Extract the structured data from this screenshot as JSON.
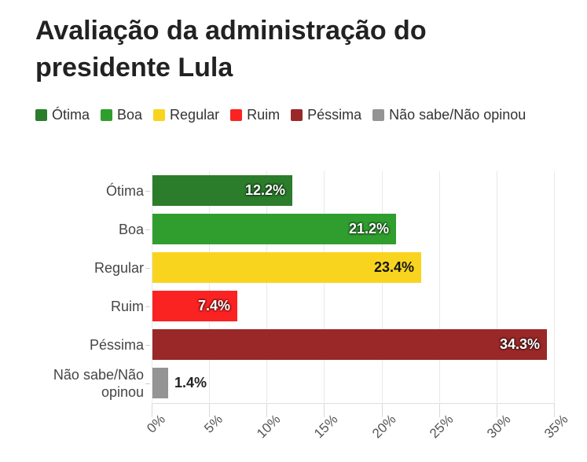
{
  "title": "Avaliação da administração do presidente Lula",
  "colors": {
    "background": "#ffffff",
    "grid": "#e8e8e8",
    "title_text": "#222222",
    "category_text": "#454545",
    "tick_text": "#555555"
  },
  "chart_data": {
    "type": "bar",
    "orientation": "horizontal",
    "title": "Avaliação da administração do presidente Lula",
    "xlabel": "",
    "ylabel": "",
    "xlim": [
      0,
      35
    ],
    "grid": "vertical",
    "legend_position": "top-left",
    "categories": [
      "Ótima",
      "Boa",
      "Regular",
      "Ruim",
      "Péssima",
      "Não sabe/Não opinou"
    ],
    "values": [
      12.2,
      21.2,
      23.4,
      7.4,
      34.3,
      1.4
    ],
    "series": [
      {
        "name": "Ótima",
        "value": 12.2,
        "label": "12.2%",
        "color": "#2b7d2b",
        "value_label_style": "inside-white"
      },
      {
        "name": "Boa",
        "value": 21.2,
        "label": "21.2%",
        "color": "#2f9e2f",
        "value_label_style": "inside-white"
      },
      {
        "name": "Regular",
        "value": 23.4,
        "label": "23.4%",
        "color": "#f8d41f",
        "value_label_style": "inside-black"
      },
      {
        "name": "Ruim",
        "value": 7.4,
        "label": "7.4%",
        "color": "#fb2222",
        "value_label_style": "inside-white"
      },
      {
        "name": "Péssima",
        "value": 34.3,
        "label": "34.3%",
        "color": "#9a2828",
        "value_label_style": "inside-white"
      },
      {
        "name": "Não sabe/Não opinou",
        "value": 1.4,
        "label": "1.4%",
        "color": "#949494",
        "value_label_style": "outside-dark"
      }
    ],
    "x_ticks": [
      {
        "value": 0,
        "label": "0%"
      },
      {
        "value": 5,
        "label": "5%"
      },
      {
        "value": 10,
        "label": "10%"
      },
      {
        "value": 15,
        "label": "15%"
      },
      {
        "value": 20,
        "label": "20%"
      },
      {
        "value": 25,
        "label": "25%"
      },
      {
        "value": 30,
        "label": "30%"
      },
      {
        "value": 35,
        "label": "35%"
      }
    ]
  }
}
